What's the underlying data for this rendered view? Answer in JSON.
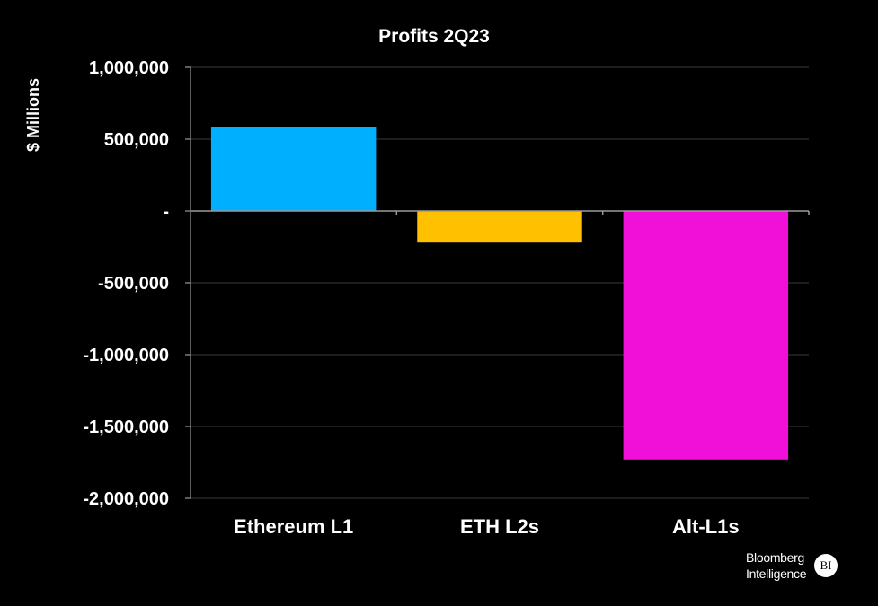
{
  "chart_data": {
    "type": "bar",
    "title": "Profits 2Q23",
    "xlabel": "",
    "ylabel": "$ Millions",
    "categories": [
      "Ethereum L1",
      "ETH L2s",
      "Alt-L1s"
    ],
    "values": [
      585000,
      -220000,
      -1730000
    ],
    "colors": [
      "#00b0ff",
      "#ffc000",
      "#f010d8"
    ],
    "ylim": [
      -2000000,
      1000000
    ],
    "yticks": [
      1000000,
      500000,
      0,
      -500000,
      -1000000,
      -1500000,
      -2000000
    ],
    "ytick_labels": [
      "1,000,000",
      "500,000",
      "-",
      "-500,000",
      "-1,000,000",
      "-1,500,000",
      "-2,000,000"
    ],
    "grid": true,
    "legend": "none"
  },
  "branding": {
    "line1": "Bloomberg",
    "line2": "Intelligence",
    "badge": "BI"
  }
}
